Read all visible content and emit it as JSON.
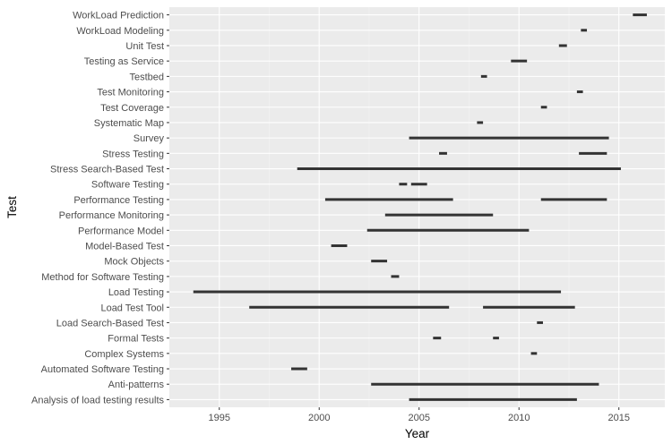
{
  "chart_data": {
    "type": "segment",
    "xlabel": "Year",
    "ylabel": "Test",
    "xlim": [
      1992.5,
      2017.3
    ],
    "x_ticks": [
      1995,
      2000,
      2005,
      2010,
      2015
    ],
    "grid": true,
    "colors": {
      "panel": "#ebebeb",
      "grid_major": "#ffffff",
      "grid_minor": "#f3f3f3",
      "segment": "#333333"
    },
    "categories": [
      "WorkLoad Prediction",
      "WorkLoad Modeling",
      "Unit Test",
      "Testing as Service",
      "Testbed",
      "Test Monitoring",
      "Test Coverage",
      "Systematic Map",
      "Survey",
      "Stress Testing",
      "Stress Search-Based Test",
      "Software Testing",
      "Performance Testing",
      "Performance Monitoring",
      "Performance Model",
      "Model-Based Test",
      "Mock Objects",
      "Method for Software Testing",
      "Load Testing",
      "Load Test Tool",
      "Load Search-Based Test",
      "Formal Tests",
      "Complex Systems",
      "Automated Software Testing",
      "Anti-patterns",
      "Analysis of load testing results"
    ],
    "segments": [
      {
        "category": "WorkLoad Prediction",
        "start": 2015.7,
        "end": 2016.4
      },
      {
        "category": "WorkLoad Modeling",
        "start": 2013.1,
        "end": 2013.4
      },
      {
        "category": "Unit Test",
        "start": 2012.0,
        "end": 2012.4
      },
      {
        "category": "Testing as Service",
        "start": 2009.6,
        "end": 2010.4
      },
      {
        "category": "Testbed",
        "start": 2008.1,
        "end": 2008.4
      },
      {
        "category": "Test Monitoring",
        "start": 2012.9,
        "end": 2013.2
      },
      {
        "category": "Test Coverage",
        "start": 2011.1,
        "end": 2011.4
      },
      {
        "category": "Systematic Map",
        "start": 2007.9,
        "end": 2008.2
      },
      {
        "category": "Survey",
        "start": 2004.5,
        "end": 2014.5
      },
      {
        "category": "Stress Testing",
        "start": 2006.0,
        "end": 2006.4
      },
      {
        "category": "Stress Testing",
        "start": 2013.0,
        "end": 2014.4
      },
      {
        "category": "Stress Search-Based Test",
        "start": 1998.9,
        "end": 2015.1
      },
      {
        "category": "Software Testing",
        "start": 2004.0,
        "end": 2004.4
      },
      {
        "category": "Software Testing",
        "start": 2004.6,
        "end": 2005.4
      },
      {
        "category": "Performance Testing",
        "start": 2000.3,
        "end": 2006.7
      },
      {
        "category": "Performance Testing",
        "start": 2011.1,
        "end": 2014.4
      },
      {
        "category": "Performance Monitoring",
        "start": 2003.3,
        "end": 2008.7
      },
      {
        "category": "Performance Model",
        "start": 2002.4,
        "end": 2010.5
      },
      {
        "category": "Model-Based Test",
        "start": 2000.6,
        "end": 2001.4
      },
      {
        "category": "Mock Objects",
        "start": 2002.6,
        "end": 2003.4
      },
      {
        "category": "Method for Software Testing",
        "start": 2003.6,
        "end": 2004.0
      },
      {
        "category": "Load Testing",
        "start": 1993.7,
        "end": 2012.1
      },
      {
        "category": "Load Test Tool",
        "start": 1996.5,
        "end": 2006.5
      },
      {
        "category": "Load Test Tool",
        "start": 2008.2,
        "end": 2012.8
      },
      {
        "category": "Load Search-Based Test",
        "start": 2010.9,
        "end": 2011.2
      },
      {
        "category": "Formal Tests",
        "start": 2005.7,
        "end": 2006.1
      },
      {
        "category": "Formal Tests",
        "start": 2008.7,
        "end": 2009.0
      },
      {
        "category": "Complex Systems",
        "start": 2010.6,
        "end": 2010.9
      },
      {
        "category": "Automated Software Testing",
        "start": 1998.6,
        "end": 1999.4
      },
      {
        "category": "Anti-patterns",
        "start": 2002.6,
        "end": 2014.0
      },
      {
        "category": "Analysis of load testing results",
        "start": 2004.5,
        "end": 2012.9
      }
    ]
  }
}
